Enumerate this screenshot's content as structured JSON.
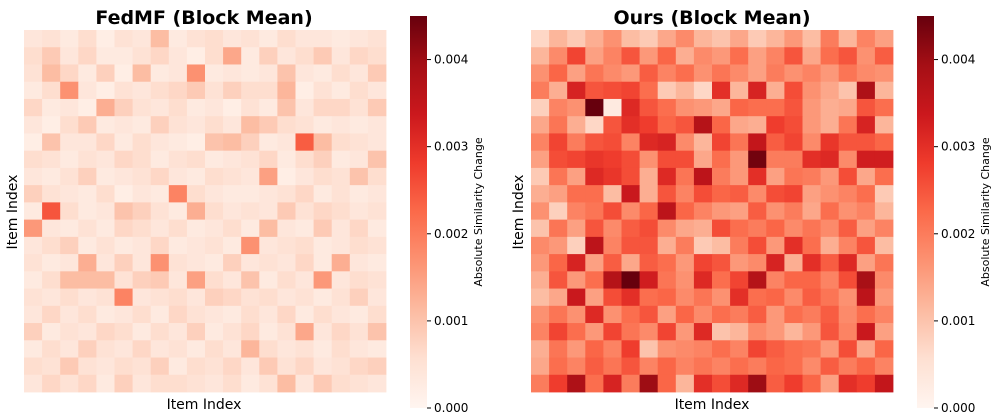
{
  "chart_data": [
    {
      "type": "heatmap",
      "title": "FedMF  (Block Mean)",
      "xlabel": "Item Index",
      "ylabel": "Item Index",
      "colorbar": {
        "label": "Absolute Similarity Change",
        "ticks": [
          0.0,
          0.001,
          0.002,
          0.003,
          0.004
        ],
        "tick_labels": [
          "0.000",
          "0.001",
          "0.002",
          "0.003",
          "0.004"
        ],
        "range": [
          0.0,
          0.0045
        ],
        "colormap": "Reds"
      },
      "values": [
        [
          0.0004,
          0.0005,
          0.0003,
          0.0006,
          0.0002,
          0.0005,
          0.0004,
          0.0011,
          0.0003,
          0.0005,
          0.0006,
          0.0004,
          0.0005,
          0.0003,
          0.0006,
          0.0004,
          0.0004,
          0.0003,
          0.0004,
          0.0005
        ],
        [
          0.0006,
          0.0009,
          0.0004,
          0.0007,
          0.0003,
          0.0003,
          0.0005,
          0.0007,
          0.0004,
          0.0002,
          0.0006,
          0.0014,
          0.0003,
          0.0008,
          0.0004,
          0.0006,
          0.0009,
          0.0004,
          0.0007,
          0.0006
        ],
        [
          0.0005,
          0.0011,
          0.0007,
          0.0003,
          0.0008,
          0.0002,
          0.0011,
          0.0003,
          0.0004,
          0.0017,
          0.0003,
          0.0004,
          0.0003,
          0.0004,
          0.001,
          0.0004,
          0.0003,
          0.0006,
          0.0004,
          0.0009
        ],
        [
          0.0003,
          0.0006,
          0.0017,
          0.0004,
          0.0002,
          0.0005,
          0.0004,
          0.0006,
          0.0007,
          0.0009,
          0.0005,
          0.0008,
          0.0006,
          0.0006,
          0.0012,
          0.0002,
          0.0005,
          0.0003,
          0.0006,
          0.0004
        ],
        [
          0.0007,
          0.0003,
          0.0004,
          0.0002,
          0.0013,
          0.0008,
          0.0005,
          0.0004,
          0.0006,
          0.0003,
          0.0004,
          0.0002,
          0.0005,
          0.0003,
          0.001,
          0.0004,
          0.0007,
          0.0007,
          0.0005,
          0.0009
        ],
        [
          0.0004,
          0.0002,
          0.0006,
          0.0009,
          0.0003,
          0.0004,
          0.0003,
          0.0008,
          0.0005,
          0.0004,
          0.0006,
          0.0004,
          0.0011,
          0.0009,
          0.0006,
          0.0005,
          0.0003,
          0.0004,
          0.0003,
          0.0004
        ],
        [
          0.0002,
          0.001,
          0.0004,
          0.0004,
          0.0007,
          0.0003,
          0.0006,
          0.0004,
          0.0003,
          0.0002,
          0.001,
          0.0011,
          0.0008,
          0.0003,
          0.0004,
          0.0024,
          0.0011,
          0.0006,
          0.0005,
          0.0004
        ],
        [
          0.0006,
          0.0005,
          0.0003,
          0.0005,
          0.0004,
          0.0007,
          0.0006,
          0.0003,
          0.0005,
          0.0006,
          0.0003,
          0.0004,
          0.0005,
          0.0007,
          0.0003,
          0.0006,
          0.0008,
          0.0003,
          0.0004,
          0.001
        ],
        [
          0.0004,
          0.0003,
          0.0005,
          0.0008,
          0.0003,
          0.0004,
          0.0005,
          0.0007,
          0.0004,
          0.0003,
          0.0006,
          0.0005,
          0.0004,
          0.0015,
          0.0002,
          0.0004,
          0.0006,
          0.0005,
          0.001,
          0.0006
        ],
        [
          0.0008,
          0.0005,
          0.0004,
          0.0003,
          0.0006,
          0.0002,
          0.0004,
          0.0003,
          0.0019,
          0.0006,
          0.0004,
          0.0003,
          0.0003,
          0.0004,
          0.0005,
          0.0007,
          0.0003,
          0.0005,
          0.0003,
          0.0004
        ],
        [
          0.0003,
          0.0025,
          0.0006,
          0.0003,
          0.0004,
          0.001,
          0.0008,
          0.0005,
          0.0003,
          0.0013,
          0.0006,
          0.0004,
          0.0005,
          0.0004,
          0.0009,
          0.0005,
          0.0007,
          0.0006,
          0.0004,
          0.0005
        ],
        [
          0.0016,
          0.0004,
          0.0003,
          0.0005,
          0.0003,
          0.0007,
          0.0006,
          0.0004,
          0.0006,
          0.0003,
          0.0004,
          0.0006,
          0.0003,
          0.0011,
          0.0004,
          0.0003,
          0.0009,
          0.0004,
          0.0007,
          0.0003
        ],
        [
          0.0004,
          0.0006,
          0.0008,
          0.0003,
          0.0005,
          0.0003,
          0.0004,
          0.0007,
          0.0003,
          0.0004,
          0.0005,
          0.0003,
          0.0017,
          0.0004,
          0.0005,
          0.0006,
          0.0003,
          0.0004,
          0.0006,
          0.0005
        ],
        [
          0.0005,
          0.0003,
          0.0004,
          0.0013,
          0.0004,
          0.0008,
          0.0004,
          0.0017,
          0.0005,
          0.0004,
          0.0003,
          0.0008,
          0.0004,
          0.0005,
          0.0004,
          0.0007,
          0.0003,
          0.0013,
          0.0004,
          0.0003
        ],
        [
          0.0003,
          0.0006,
          0.0011,
          0.0011,
          0.0011,
          0.0005,
          0.0008,
          0.0009,
          0.0004,
          0.0015,
          0.0006,
          0.0004,
          0.001,
          0.0003,
          0.0006,
          0.0004,
          0.0016,
          0.0004,
          0.0006,
          0.0005
        ],
        [
          0.0005,
          0.0004,
          0.0006,
          0.0004,
          0.0005,
          0.0019,
          0.0004,
          0.0005,
          0.0006,
          0.0004,
          0.0008,
          0.0007,
          0.0005,
          0.0006,
          0.0004,
          0.0005,
          0.0003,
          0.0005,
          0.0008,
          0.0004
        ],
        [
          0.0004,
          0.0007,
          0.0004,
          0.0006,
          0.0003,
          0.0004,
          0.0006,
          0.0003,
          0.0007,
          0.0005,
          0.0004,
          0.0003,
          0.0006,
          0.0004,
          0.0007,
          0.0003,
          0.0006,
          0.0004,
          0.0003,
          0.0006
        ],
        [
          0.0008,
          0.0003,
          0.0005,
          0.0004,
          0.0007,
          0.0006,
          0.0003,
          0.0006,
          0.0004,
          0.0008,
          0.0003,
          0.0005,
          0.0007,
          0.0003,
          0.0005,
          0.0014,
          0.0004,
          0.0007,
          0.0005,
          0.001
        ],
        [
          0.0003,
          0.0006,
          0.0004,
          0.0008,
          0.0005,
          0.0004,
          0.0007,
          0.0004,
          0.0005,
          0.0003,
          0.0006,
          0.0004,
          0.0012,
          0.0006,
          0.0004,
          0.0005,
          0.0003,
          0.0006,
          0.0004,
          0.0003
        ],
        [
          0.0006,
          0.0005,
          0.0009,
          0.0005,
          0.0004,
          0.0006,
          0.0005,
          0.0008,
          0.0003,
          0.0006,
          0.0005,
          0.0007,
          0.0004,
          0.0009,
          0.0005,
          0.0007,
          0.0004,
          0.0005,
          0.0007,
          0.0008
        ],
        [
          0.0004,
          0.0007,
          0.0005,
          0.0007,
          0.0003,
          0.0008,
          0.0004,
          0.0006,
          0.0006,
          0.0005,
          0.0004,
          0.0006,
          0.0003,
          0.0005,
          0.0011,
          0.0004,
          0.0009,
          0.0006,
          0.0005,
          0.0004
        ]
      ]
    },
    {
      "type": "heatmap",
      "title": "Ours  (Block Mean)",
      "xlabel": "Item Index",
      "ylabel": "Item Index",
      "colorbar": {
        "label": "Absolute Similarity Change",
        "ticks": [
          0.0,
          0.001,
          0.002,
          0.003,
          0.004
        ],
        "tick_labels": [
          "0.000",
          "0.001",
          "0.002",
          "0.003",
          "0.004"
        ],
        "range": [
          0.0,
          0.0045
        ],
        "colormap": "Reds"
      },
      "values": [
        [
          0.0007,
          0.0012,
          0.0009,
          0.0013,
          0.0017,
          0.0011,
          0.0009,
          0.0014,
          0.0018,
          0.0012,
          0.001,
          0.0014,
          0.0009,
          0.0012,
          0.0016,
          0.0011,
          0.002,
          0.0012,
          0.0019,
          0.0015
        ],
        [
          0.0012,
          0.0018,
          0.0027,
          0.0015,
          0.0019,
          0.0025,
          0.0016,
          0.0023,
          0.0013,
          0.0018,
          0.0016,
          0.0022,
          0.0015,
          0.0019,
          0.0025,
          0.0014,
          0.0022,
          0.0025,
          0.0017,
          0.0024
        ],
        [
          0.0017,
          0.0023,
          0.0015,
          0.0021,
          0.0018,
          0.0016,
          0.0024,
          0.0019,
          0.0022,
          0.0017,
          0.0021,
          0.0018,
          0.0015,
          0.002,
          0.0017,
          0.0019,
          0.0016,
          0.0021,
          0.0018,
          0.0017
        ],
        [
          0.002,
          0.0013,
          0.0032,
          0.0025,
          0.0026,
          0.0027,
          0.0022,
          0.0009,
          0.0012,
          0.0007,
          0.003,
          0.0012,
          0.0032,
          0.0013,
          0.0026,
          0.0017,
          0.0014,
          0.001,
          0.0038,
          0.0012
        ],
        [
          0.0008,
          0.0019,
          0.0017,
          0.0045,
          0.0003,
          0.0031,
          0.0025,
          0.0022,
          0.0017,
          0.0016,
          0.0014,
          0.0023,
          0.0022,
          0.0022,
          0.0025,
          0.0016,
          0.0013,
          0.0014,
          0.0025,
          0.0022
        ],
        [
          0.0014,
          0.0021,
          0.0013,
          0.0007,
          0.0025,
          0.003,
          0.0028,
          0.0023,
          0.0025,
          0.0037,
          0.0023,
          0.0014,
          0.0013,
          0.0028,
          0.0026,
          0.0016,
          0.0013,
          0.0021,
          0.0032,
          0.0012
        ],
        [
          0.0019,
          0.0027,
          0.002,
          0.0025,
          0.0026,
          0.0019,
          0.0031,
          0.0032,
          0.0018,
          0.0012,
          0.0027,
          0.0021,
          0.0035,
          0.0024,
          0.0027,
          0.0018,
          0.0029,
          0.0025,
          0.0025,
          0.0023
        ],
        [
          0.0015,
          0.0026,
          0.0027,
          0.0029,
          0.0028,
          0.0026,
          0.0017,
          0.0026,
          0.0026,
          0.0014,
          0.0022,
          0.0016,
          0.0044,
          0.002,
          0.002,
          0.003,
          0.0031,
          0.0018,
          0.0033,
          0.0033
        ],
        [
          0.0009,
          0.0021,
          0.0015,
          0.0031,
          0.0029,
          0.0026,
          0.0013,
          0.0031,
          0.0021,
          0.0036,
          0.002,
          0.0016,
          0.003,
          0.0015,
          0.0021,
          0.002,
          0.0016,
          0.0026,
          0.0014,
          0.0022
        ],
        [
          0.0013,
          0.0015,
          0.0022,
          0.0022,
          0.0011,
          0.0034,
          0.0013,
          0.0025,
          0.0019,
          0.0026,
          0.0023,
          0.0024,
          0.0018,
          0.0026,
          0.0027,
          0.0015,
          0.0017,
          0.0019,
          0.0022,
          0.0009
        ],
        [
          0.0017,
          0.0008,
          0.0019,
          0.0021,
          0.0026,
          0.0018,
          0.0023,
          0.0036,
          0.0023,
          0.0019,
          0.0016,
          0.0015,
          0.0024,
          0.0017,
          0.002,
          0.0014,
          0.0022,
          0.0017,
          0.0019,
          0.0012
        ],
        [
          0.001,
          0.0021,
          0.0015,
          0.0025,
          0.0018,
          0.0024,
          0.0026,
          0.0018,
          0.0014,
          0.0013,
          0.0026,
          0.0022,
          0.002,
          0.0023,
          0.0018,
          0.0021,
          0.0018,
          0.0024,
          0.0015,
          0.0019
        ],
        [
          0.0018,
          0.0016,
          0.0008,
          0.0036,
          0.0019,
          0.0025,
          0.0025,
          0.0013,
          0.002,
          0.0009,
          0.0011,
          0.002,
          0.0026,
          0.0016,
          0.003,
          0.0022,
          0.0013,
          0.0019,
          0.0025,
          0.0011
        ],
        [
          0.0016,
          0.0023,
          0.0032,
          0.0015,
          0.0024,
          0.0014,
          0.0024,
          0.0022,
          0.0016,
          0.0027,
          0.0025,
          0.0016,
          0.0018,
          0.0032,
          0.0013,
          0.003,
          0.0024,
          0.0031,
          0.0015,
          0.0021
        ],
        [
          0.0013,
          0.0025,
          0.0016,
          0.0022,
          0.0037,
          0.0045,
          0.0033,
          0.0021,
          0.0017,
          0.0031,
          0.0022,
          0.0027,
          0.0037,
          0.0019,
          0.0023,
          0.0023,
          0.0019,
          0.0026,
          0.0039,
          0.0018
        ],
        [
          0.0011,
          0.0014,
          0.0034,
          0.0015,
          0.0026,
          0.003,
          0.0022,
          0.0023,
          0.0018,
          0.0021,
          0.0017,
          0.003,
          0.0022,
          0.0023,
          0.0018,
          0.0024,
          0.0021,
          0.0017,
          0.0036,
          0.0016
        ],
        [
          0.0017,
          0.0021,
          0.0017,
          0.0031,
          0.0017,
          0.0022,
          0.0025,
          0.0015,
          0.0023,
          0.0018,
          0.0022,
          0.002,
          0.0024,
          0.0016,
          0.0022,
          0.002,
          0.0024,
          0.0018,
          0.0022,
          0.0019
        ],
        [
          0.0019,
          0.0027,
          0.0022,
          0.0016,
          0.0027,
          0.0021,
          0.0018,
          0.0027,
          0.0016,
          0.0031,
          0.001,
          0.0012,
          0.0018,
          0.0016,
          0.0012,
          0.0016,
          0.0025,
          0.0019,
          0.0034,
          0.0015
        ],
        [
          0.0013,
          0.0021,
          0.0016,
          0.0023,
          0.0019,
          0.0028,
          0.001,
          0.0017,
          0.0018,
          0.0019,
          0.0022,
          0.0019,
          0.0027,
          0.0024,
          0.0022,
          0.0021,
          0.0016,
          0.0026,
          0.0014,
          0.0023
        ],
        [
          0.0014,
          0.0022,
          0.0019,
          0.0024,
          0.0021,
          0.0025,
          0.0019,
          0.0023,
          0.0019,
          0.0021,
          0.0019,
          0.0022,
          0.002,
          0.0023,
          0.0022,
          0.0018,
          0.0024,
          0.002,
          0.0023,
          0.0019
        ],
        [
          0.002,
          0.0028,
          0.0038,
          0.0022,
          0.0032,
          0.002,
          0.004,
          0.0023,
          0.0012,
          0.003,
          0.0026,
          0.0031,
          0.004,
          0.0024,
          0.0028,
          0.0023,
          0.0015,
          0.003,
          0.0028,
          0.0035
        ]
      ]
    }
  ]
}
